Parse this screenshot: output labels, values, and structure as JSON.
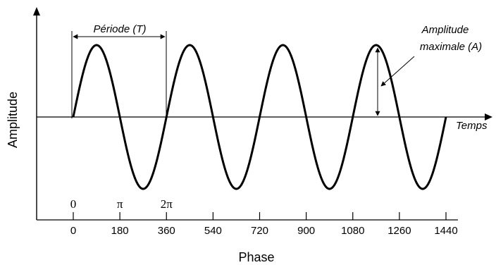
{
  "chart_data": {
    "type": "line",
    "ylabel": "Amplitude",
    "xlabel": "Phase",
    "time_axis_label": "Temps",
    "period_annotation": "Période (T)",
    "amplitude_annotation": [
      "Amplitude",
      "maximale (A)"
    ],
    "phase_ticks": [
      0,
      180,
      360,
      540,
      720,
      900,
      1080,
      1260,
      1440
    ],
    "phase_tick_labels": [
      "0",
      "180",
      "360",
      "540",
      "720",
      "900",
      "1080",
      "1260",
      "1440"
    ],
    "radian_labels": [
      {
        "phase": 0,
        "label": "0"
      },
      {
        "phase": 180,
        "label": "π"
      },
      {
        "phase": 360,
        "label": "2π"
      }
    ],
    "xlim": [
      0,
      1440
    ],
    "ylim": [
      -1,
      1
    ],
    "series": [
      {
        "function": "sine",
        "amplitude": 1,
        "period_deg": 360,
        "phase_start": 0,
        "phase_end": 1440
      }
    ],
    "grid": false,
    "legend": "none"
  }
}
